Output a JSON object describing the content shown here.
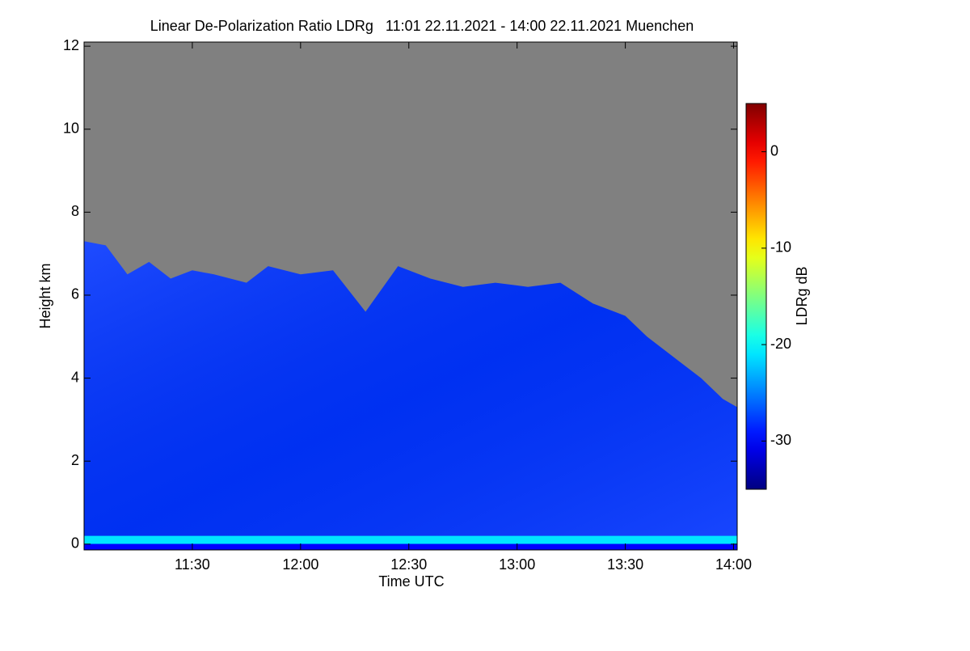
{
  "chart_data": {
    "type": "heatmap",
    "title": "Linear De-Polarization Ratio LDRg   11:01 22.11.2021 - 14:00 22.11.2021 Muenchen",
    "x_label": "Time UTC",
    "y_label": "Height km",
    "colorbar_label": "LDRg dB",
    "xlim": [
      11.0,
      14.0167
    ],
    "xticks": [
      {
        "value": 11.5,
        "label": "11:30"
      },
      {
        "value": 12.0,
        "label": "12:00"
      },
      {
        "value": 12.5,
        "label": "12:30"
      },
      {
        "value": 13.0,
        "label": "13:00"
      },
      {
        "value": 13.5,
        "label": "13:30"
      },
      {
        "value": 14.0,
        "label": "14:00"
      }
    ],
    "ylim": [
      -0.14,
      12.1
    ],
    "yticks": [
      0,
      2,
      4,
      6,
      8,
      10,
      12
    ],
    "zlim": [
      -35,
      5
    ],
    "zticks": [
      -30,
      -20,
      -10,
      0
    ],
    "background_color": "#808080",
    "x": [
      11.0,
      11.1,
      11.2,
      11.3,
      11.4,
      11.5,
      11.6,
      11.75,
      11.85,
      12.0,
      12.15,
      12.3,
      12.45,
      12.6,
      12.75,
      12.9,
      13.05,
      13.2,
      13.35,
      13.5,
      13.6,
      13.75,
      13.85,
      13.95,
      14.0167
    ],
    "series": [
      {
        "name": "cloud top",
        "values": [
          7.3,
          7.2,
          6.5,
          6.8,
          6.4,
          6.6,
          6.5,
          6.3,
          6.7,
          6.5,
          6.6,
          5.6,
          6.7,
          6.4,
          6.2,
          6.3,
          6.2,
          6.3,
          5.8,
          5.5,
          5.0,
          4.4,
          4.0,
          3.5,
          3.3
        ],
        "ldr": -28
      },
      {
        "name": "surface layer",
        "values": [
          0.2,
          0.2,
          0.2,
          0.2,
          0.2,
          0.2,
          0.2,
          0.2,
          0.2,
          0.2,
          0.2,
          0.2,
          0.2,
          0.2,
          0.2,
          0.2,
          0.2,
          0.2,
          0.2,
          0.2,
          0.2,
          0.2,
          0.2,
          0.2,
          0.2
        ],
        "ldr": -21
      }
    ]
  }
}
